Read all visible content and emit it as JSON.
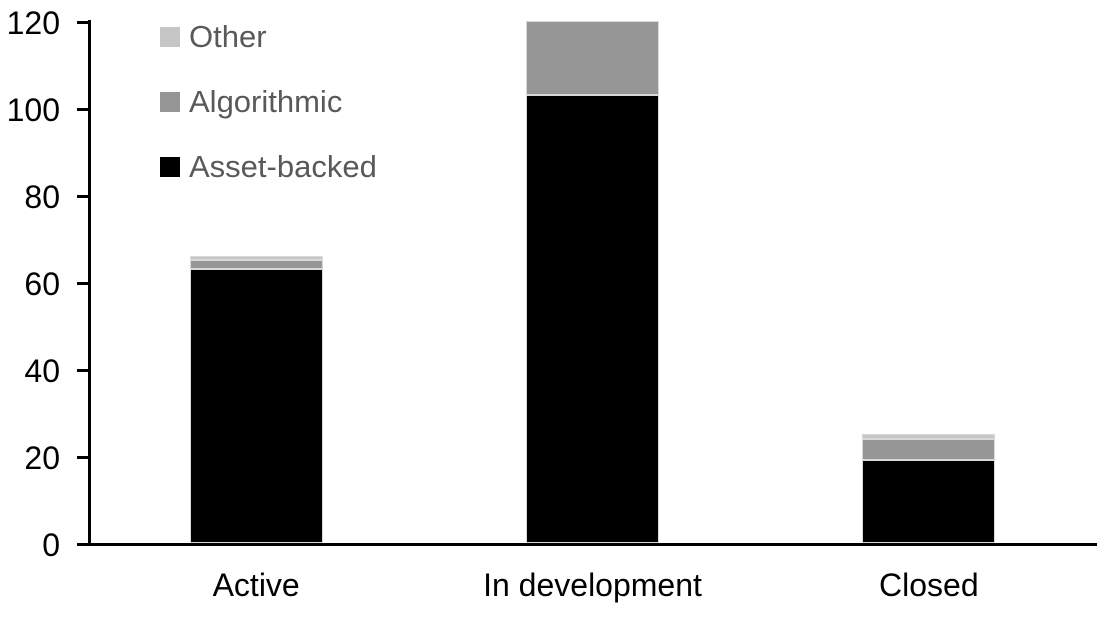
{
  "chart_data": {
    "type": "bar",
    "stacked": true,
    "title": "",
    "xlabel": "",
    "ylabel": "",
    "categories": [
      "Active",
      "In development",
      "Closed"
    ],
    "series": [
      {
        "name": "Asset-backed",
        "color": "#000000",
        "values": [
          63,
          103,
          19
        ]
      },
      {
        "name": "Algorithmic",
        "color": "#969696",
        "values": [
          2,
          17,
          5
        ]
      },
      {
        "name": "Other",
        "color": "#c6c6c6",
        "values": [
          1,
          0,
          1
        ]
      }
    ],
    "totals": [
      66,
      120,
      25
    ],
    "y_axis": {
      "ticks": [
        0,
        20,
        40,
        60,
        80,
        100,
        120
      ],
      "range": [
        0,
        120
      ],
      "grid": false
    },
    "legend": {
      "position": "top-left",
      "order": [
        "Other",
        "Algorithmic",
        "Asset-backed"
      ],
      "text_color": "#595959"
    },
    "axis_color": "#000000"
  }
}
